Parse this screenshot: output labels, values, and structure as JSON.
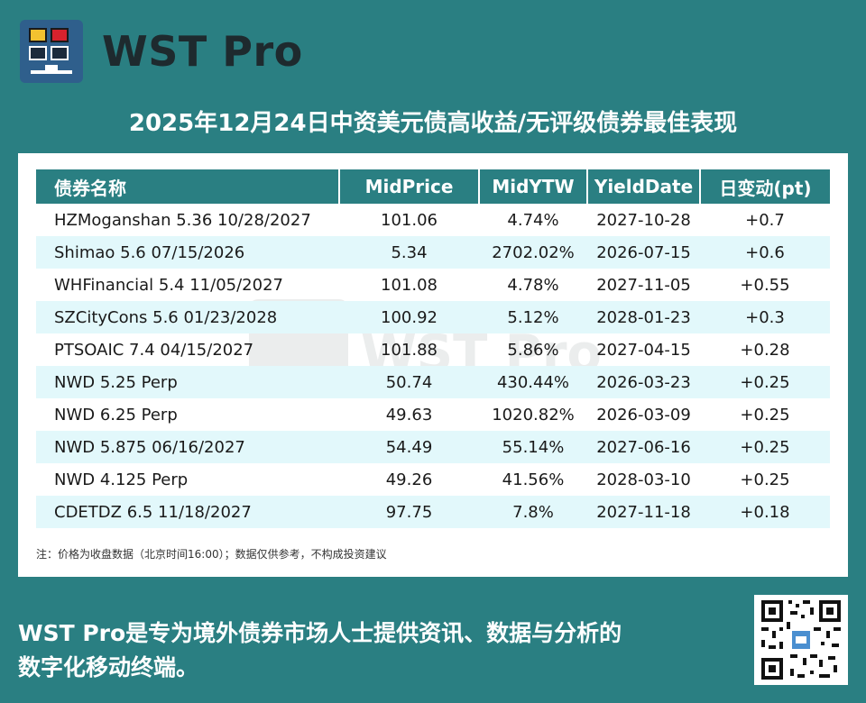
{
  "brand": {
    "name": "WST Pro"
  },
  "title": "2025年12月24日中资美元债高收益/无评级债券最佳表现",
  "table": {
    "columns": [
      "债券名称",
      "MidPrice",
      "MidYTW",
      "YieldDate",
      "日变动(pt)"
    ],
    "rows": [
      [
        "HZMoganshan 5.36 10/28/2027",
        "101.06",
        "4.74%",
        "2027-10-28",
        "+0.7"
      ],
      [
        "Shimao 5.6 07/15/2026",
        "5.34",
        "2702.02%",
        "2026-07-15",
        "+0.6"
      ],
      [
        "WHFinancial 5.4 11/05/2027",
        "101.08",
        "4.78%",
        "2027-11-05",
        "+0.55"
      ],
      [
        "SZCityCons 5.6 01/23/2028",
        "100.92",
        "5.12%",
        "2028-01-23",
        "+0.3"
      ],
      [
        "PTSOAIC 7.4 04/15/2027",
        "101.88",
        "5.86%",
        "2027-04-15",
        "+0.28"
      ],
      [
        "NWD 5.25 Perp",
        "50.74",
        "430.44%",
        "2026-03-23",
        "+0.25"
      ],
      [
        "NWD 6.25 Perp",
        "49.63",
        "1020.82%",
        "2026-03-09",
        "+0.25"
      ],
      [
        "NWD 5.875 06/16/2027",
        "54.49",
        "55.14%",
        "2027-06-16",
        "+0.25"
      ],
      [
        "NWD 4.125 Perp",
        "49.26",
        "41.56%",
        "2028-03-10",
        "+0.25"
      ],
      [
        "CDETDZ 6.5 11/18/2027",
        "97.75",
        "7.8%",
        "2027-11-18",
        "+0.18"
      ]
    ]
  },
  "note": "注：价格为收盘数据（北京时间16:00）；数据仅供参考，不构成投资建议",
  "footer": {
    "line1": "WST Pro是专为境外债券市场人士提供资讯、数据与分析的",
    "line2": "数字化移动终端。"
  },
  "colors": {
    "background": "#2a7f82",
    "header_row": "#2a7f82",
    "alt_row": "#e2f8fb",
    "logo_blue": "#2f5f8c"
  },
  "icons": [
    "wst-logo-icon",
    "qr-code-icon"
  ]
}
